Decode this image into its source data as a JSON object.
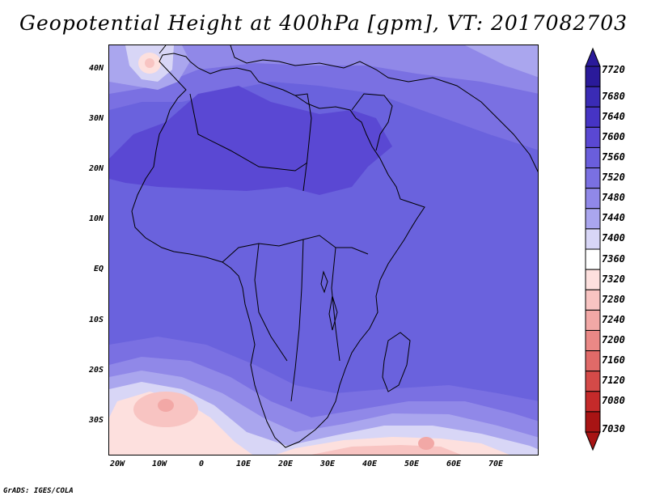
{
  "title": "Geopotential Height at 400hPa [gpm], VT: 2017082703",
  "credit": "GrADS: IGES/COLA",
  "lat_labels": [
    "40N",
    "30N",
    "20N",
    "10N",
    "EQ",
    "10S",
    "20S",
    "30S"
  ],
  "lon_labels": [
    "20W",
    "10W",
    "0",
    "10E",
    "20E",
    "30E",
    "40E",
    "50E",
    "60E",
    "70E"
  ],
  "colorbar": {
    "levels": [
      "7720",
      "7680",
      "7640",
      "7600",
      "7560",
      "7520",
      "7480",
      "7440",
      "7400",
      "7360",
      "7320",
      "7280",
      "7240",
      "7200",
      "7160",
      "7120",
      "7080",
      "7030"
    ],
    "colors": [
      "#2a1a9a",
      "#3a2bb5",
      "#4634c4",
      "#5a48d3",
      "#6a5edc",
      "#7a70e2",
      "#9088e8",
      "#aaa6ee",
      "#d8d6f6",
      "#ffffff",
      "#fde0de",
      "#f8c4c2",
      "#f2a8a6",
      "#ea8886",
      "#e06a68",
      "#d44a48",
      "#c42a2a",
      "#a81414"
    ]
  }
}
